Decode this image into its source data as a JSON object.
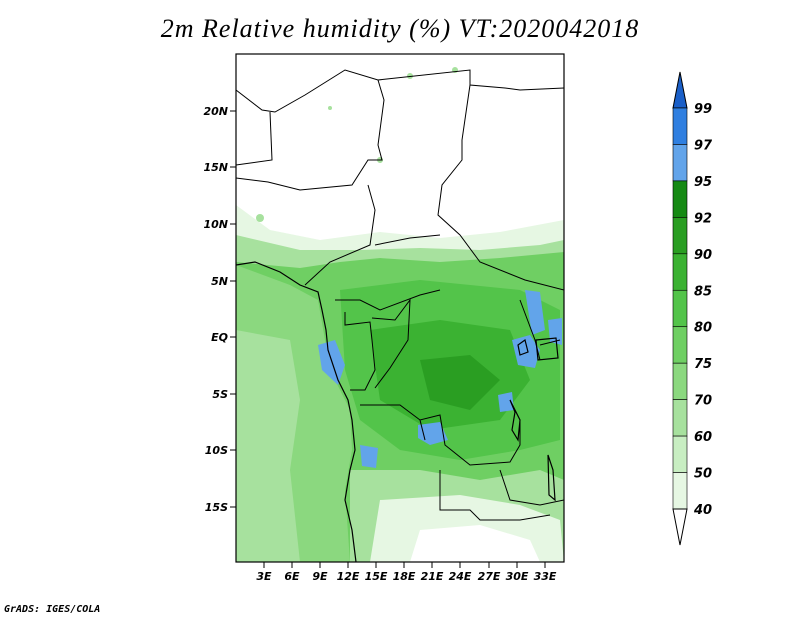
{
  "title": "2m Relative humidity (%) VT:2020042018",
  "credit": "GrADS: IGES/COLA",
  "map": {
    "lat_labels": [
      "20N",
      "15N",
      "10N",
      "5N",
      "EQ",
      "5S",
      "10S",
      "15S"
    ],
    "lat_values": [
      20,
      15,
      10,
      5,
      0,
      -5,
      -10,
      -15
    ],
    "lon_labels": [
      "3E",
      "6E",
      "9E",
      "12E",
      "15E",
      "18E",
      "21E",
      "24E",
      "27E",
      "30E",
      "33E"
    ],
    "lon_values": [
      3,
      6,
      9,
      12,
      15,
      18,
      21,
      24,
      27,
      30,
      33
    ],
    "lat_range": [
      -20,
      24.5
    ],
    "lon_range": [
      0,
      35
    ]
  },
  "colorbar": {
    "levels": [
      "40",
      "50",
      "60",
      "70",
      "75",
      "80",
      "85",
      "90",
      "92",
      "95",
      "97",
      "99"
    ],
    "colors": [
      "#ffffff",
      "#e6f7e3",
      "#c8eec2",
      "#a7e19e",
      "#8bd87f",
      "#6fcf63",
      "#53c44a",
      "#3bb232",
      "#2a9e22",
      "#168a14",
      "#62a4ea",
      "#2f7fe0",
      "#1a5fc8"
    ]
  }
}
